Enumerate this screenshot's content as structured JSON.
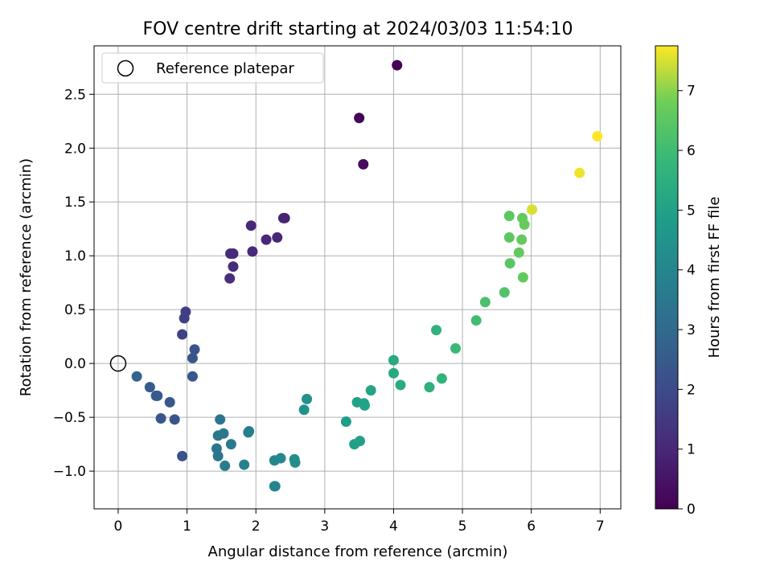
{
  "chart_data": {
    "type": "scatter",
    "title": "FOV centre drift starting at 2024/03/03 11:54:10",
    "xlabel": "Angular distance from reference (arcmin)",
    "ylabel": "Rotation from reference (arcmin)",
    "xlim": [
      -0.35,
      7.3
    ],
    "ylim": [
      -1.35,
      2.95
    ],
    "xticks": [
      0,
      1,
      2,
      3,
      4,
      5,
      6,
      7
    ],
    "yticks": [
      -1.0,
      -0.5,
      0.0,
      0.5,
      1.0,
      1.5,
      2.0,
      2.5
    ],
    "xtick_labels": [
      "0",
      "1",
      "2",
      "3",
      "4",
      "5",
      "6",
      "7"
    ],
    "ytick_labels": [
      "−1.0",
      "−0.5",
      "0.0",
      "0.5",
      "1.0",
      "1.5",
      "2.0",
      "2.5"
    ],
    "grid": true,
    "legend": {
      "placement": "upper-left",
      "entries": [
        "Reference platepar"
      ]
    },
    "reference_point": {
      "x": 0,
      "y": 0
    },
    "colorbar": {
      "label": "Hours from first FF file",
      "min": 0,
      "max": 7.75,
      "ticks": [
        0,
        1,
        2,
        3,
        4,
        5,
        6,
        7
      ],
      "tick_labels": [
        "0",
        "1",
        "2",
        "3",
        "4",
        "5",
        "6",
        "7"
      ],
      "colormap": "viridis"
    },
    "points": [
      {
        "x": 4.05,
        "y": 2.77,
        "c": 0.0
      },
      {
        "x": 3.5,
        "y": 2.28,
        "c": 0.1
      },
      {
        "x": 3.56,
        "y": 1.85,
        "c": 0.25
      },
      {
        "x": 2.42,
        "y": 1.35,
        "c": 0.9
      },
      {
        "x": 2.4,
        "y": 1.35,
        "c": 0.9
      },
      {
        "x": 2.31,
        "y": 1.17,
        "c": 0.95
      },
      {
        "x": 2.15,
        "y": 1.15,
        "c": 1.0
      },
      {
        "x": 1.93,
        "y": 1.28,
        "c": 1.0
      },
      {
        "x": 1.95,
        "y": 1.04,
        "c": 1.05
      },
      {
        "x": 1.67,
        "y": 1.02,
        "c": 1.1
      },
      {
        "x": 1.63,
        "y": 1.02,
        "c": 1.1
      },
      {
        "x": 1.67,
        "y": 0.9,
        "c": 1.15
      },
      {
        "x": 1.62,
        "y": 0.79,
        "c": 1.2
      },
      {
        "x": 0.98,
        "y": 0.48,
        "c": 1.6
      },
      {
        "x": 0.96,
        "y": 0.42,
        "c": 1.65
      },
      {
        "x": 0.93,
        "y": 0.27,
        "c": 1.7
      },
      {
        "x": 1.11,
        "y": 0.13,
        "c": 2.3
      },
      {
        "x": 1.08,
        "y": 0.05,
        "c": 2.35
      },
      {
        "x": 1.08,
        "y": -0.12,
        "c": 2.4
      },
      {
        "x": 0.27,
        "y": -0.12,
        "c": 2.8
      },
      {
        "x": 0.46,
        "y": -0.22,
        "c": 2.6
      },
      {
        "x": 0.55,
        "y": -0.3,
        "c": 2.5
      },
      {
        "x": 0.57,
        "y": -0.3,
        "c": 2.5
      },
      {
        "x": 0.75,
        "y": -0.36,
        "c": 2.4
      },
      {
        "x": 0.62,
        "y": -0.51,
        "c": 2.35
      },
      {
        "x": 0.82,
        "y": -0.52,
        "c": 2.3
      },
      {
        "x": 0.93,
        "y": -0.86,
        "c": 2.2
      },
      {
        "x": 1.48,
        "y": -0.52,
        "c": 3.4
      },
      {
        "x": 1.45,
        "y": -0.67,
        "c": 3.45
      },
      {
        "x": 1.53,
        "y": -0.65,
        "c": 3.5
      },
      {
        "x": 1.64,
        "y": -0.75,
        "c": 3.6
      },
      {
        "x": 1.43,
        "y": -0.79,
        "c": 3.4
      },
      {
        "x": 1.45,
        "y": -0.86,
        "c": 3.4
      },
      {
        "x": 1.55,
        "y": -0.95,
        "c": 3.65
      },
      {
        "x": 1.83,
        "y": -0.94,
        "c": 3.8
      },
      {
        "x": 1.9,
        "y": -0.63,
        "c": 3.75
      },
      {
        "x": 1.89,
        "y": -0.64,
        "c": 3.75
      },
      {
        "x": 2.27,
        "y": -0.9,
        "c": 4.0
      },
      {
        "x": 2.36,
        "y": -0.88,
        "c": 4.05
      },
      {
        "x": 2.27,
        "y": -1.14,
        "c": 3.95
      },
      {
        "x": 2.28,
        "y": -1.14,
        "c": 3.95
      },
      {
        "x": 2.56,
        "y": -0.89,
        "c": 4.3
      },
      {
        "x": 2.57,
        "y": -0.92,
        "c": 4.3
      },
      {
        "x": 2.7,
        "y": -0.43,
        "c": 4.4
      },
      {
        "x": 2.74,
        "y": -0.33,
        "c": 4.45
      },
      {
        "x": 3.31,
        "y": -0.54,
        "c": 4.9
      },
      {
        "x": 3.43,
        "y": -0.75,
        "c": 4.95
      },
      {
        "x": 3.51,
        "y": -0.72,
        "c": 5.0
      },
      {
        "x": 3.47,
        "y": -0.36,
        "c": 5.0
      },
      {
        "x": 3.57,
        "y": -0.37,
        "c": 5.05
      },
      {
        "x": 3.58,
        "y": -0.39,
        "c": 5.05
      },
      {
        "x": 3.67,
        "y": -0.25,
        "c": 5.1
      },
      {
        "x": 4.0,
        "y": 0.03,
        "c": 5.3
      },
      {
        "x": 4.0,
        "y": -0.09,
        "c": 5.3
      },
      {
        "x": 4.1,
        "y": -0.2,
        "c": 5.35
      },
      {
        "x": 4.52,
        "y": -0.22,
        "c": 5.55
      },
      {
        "x": 4.62,
        "y": 0.31,
        "c": 5.6
      },
      {
        "x": 4.7,
        "y": -0.14,
        "c": 5.65
      },
      {
        "x": 4.9,
        "y": 0.14,
        "c": 5.9
      },
      {
        "x": 5.2,
        "y": 0.4,
        "c": 6.05
      },
      {
        "x": 5.33,
        "y": 0.57,
        "c": 6.2
      },
      {
        "x": 5.61,
        "y": 0.66,
        "c": 6.3
      },
      {
        "x": 5.68,
        "y": 1.37,
        "c": 6.5
      },
      {
        "x": 5.68,
        "y": 1.17,
        "c": 6.5
      },
      {
        "x": 5.69,
        "y": 0.93,
        "c": 6.45
      },
      {
        "x": 5.82,
        "y": 1.03,
        "c": 6.6
      },
      {
        "x": 5.87,
        "y": 1.35,
        "c": 6.65
      },
      {
        "x": 5.86,
        "y": 1.15,
        "c": 6.65
      },
      {
        "x": 5.9,
        "y": 1.29,
        "c": 6.7
      },
      {
        "x": 5.88,
        "y": 0.8,
        "c": 6.6
      },
      {
        "x": 6.01,
        "y": 1.43,
        "c": 7.5
      },
      {
        "x": 6.7,
        "y": 1.77,
        "c": 7.65
      },
      {
        "x": 6.96,
        "y": 2.11,
        "c": 7.75
      }
    ]
  }
}
